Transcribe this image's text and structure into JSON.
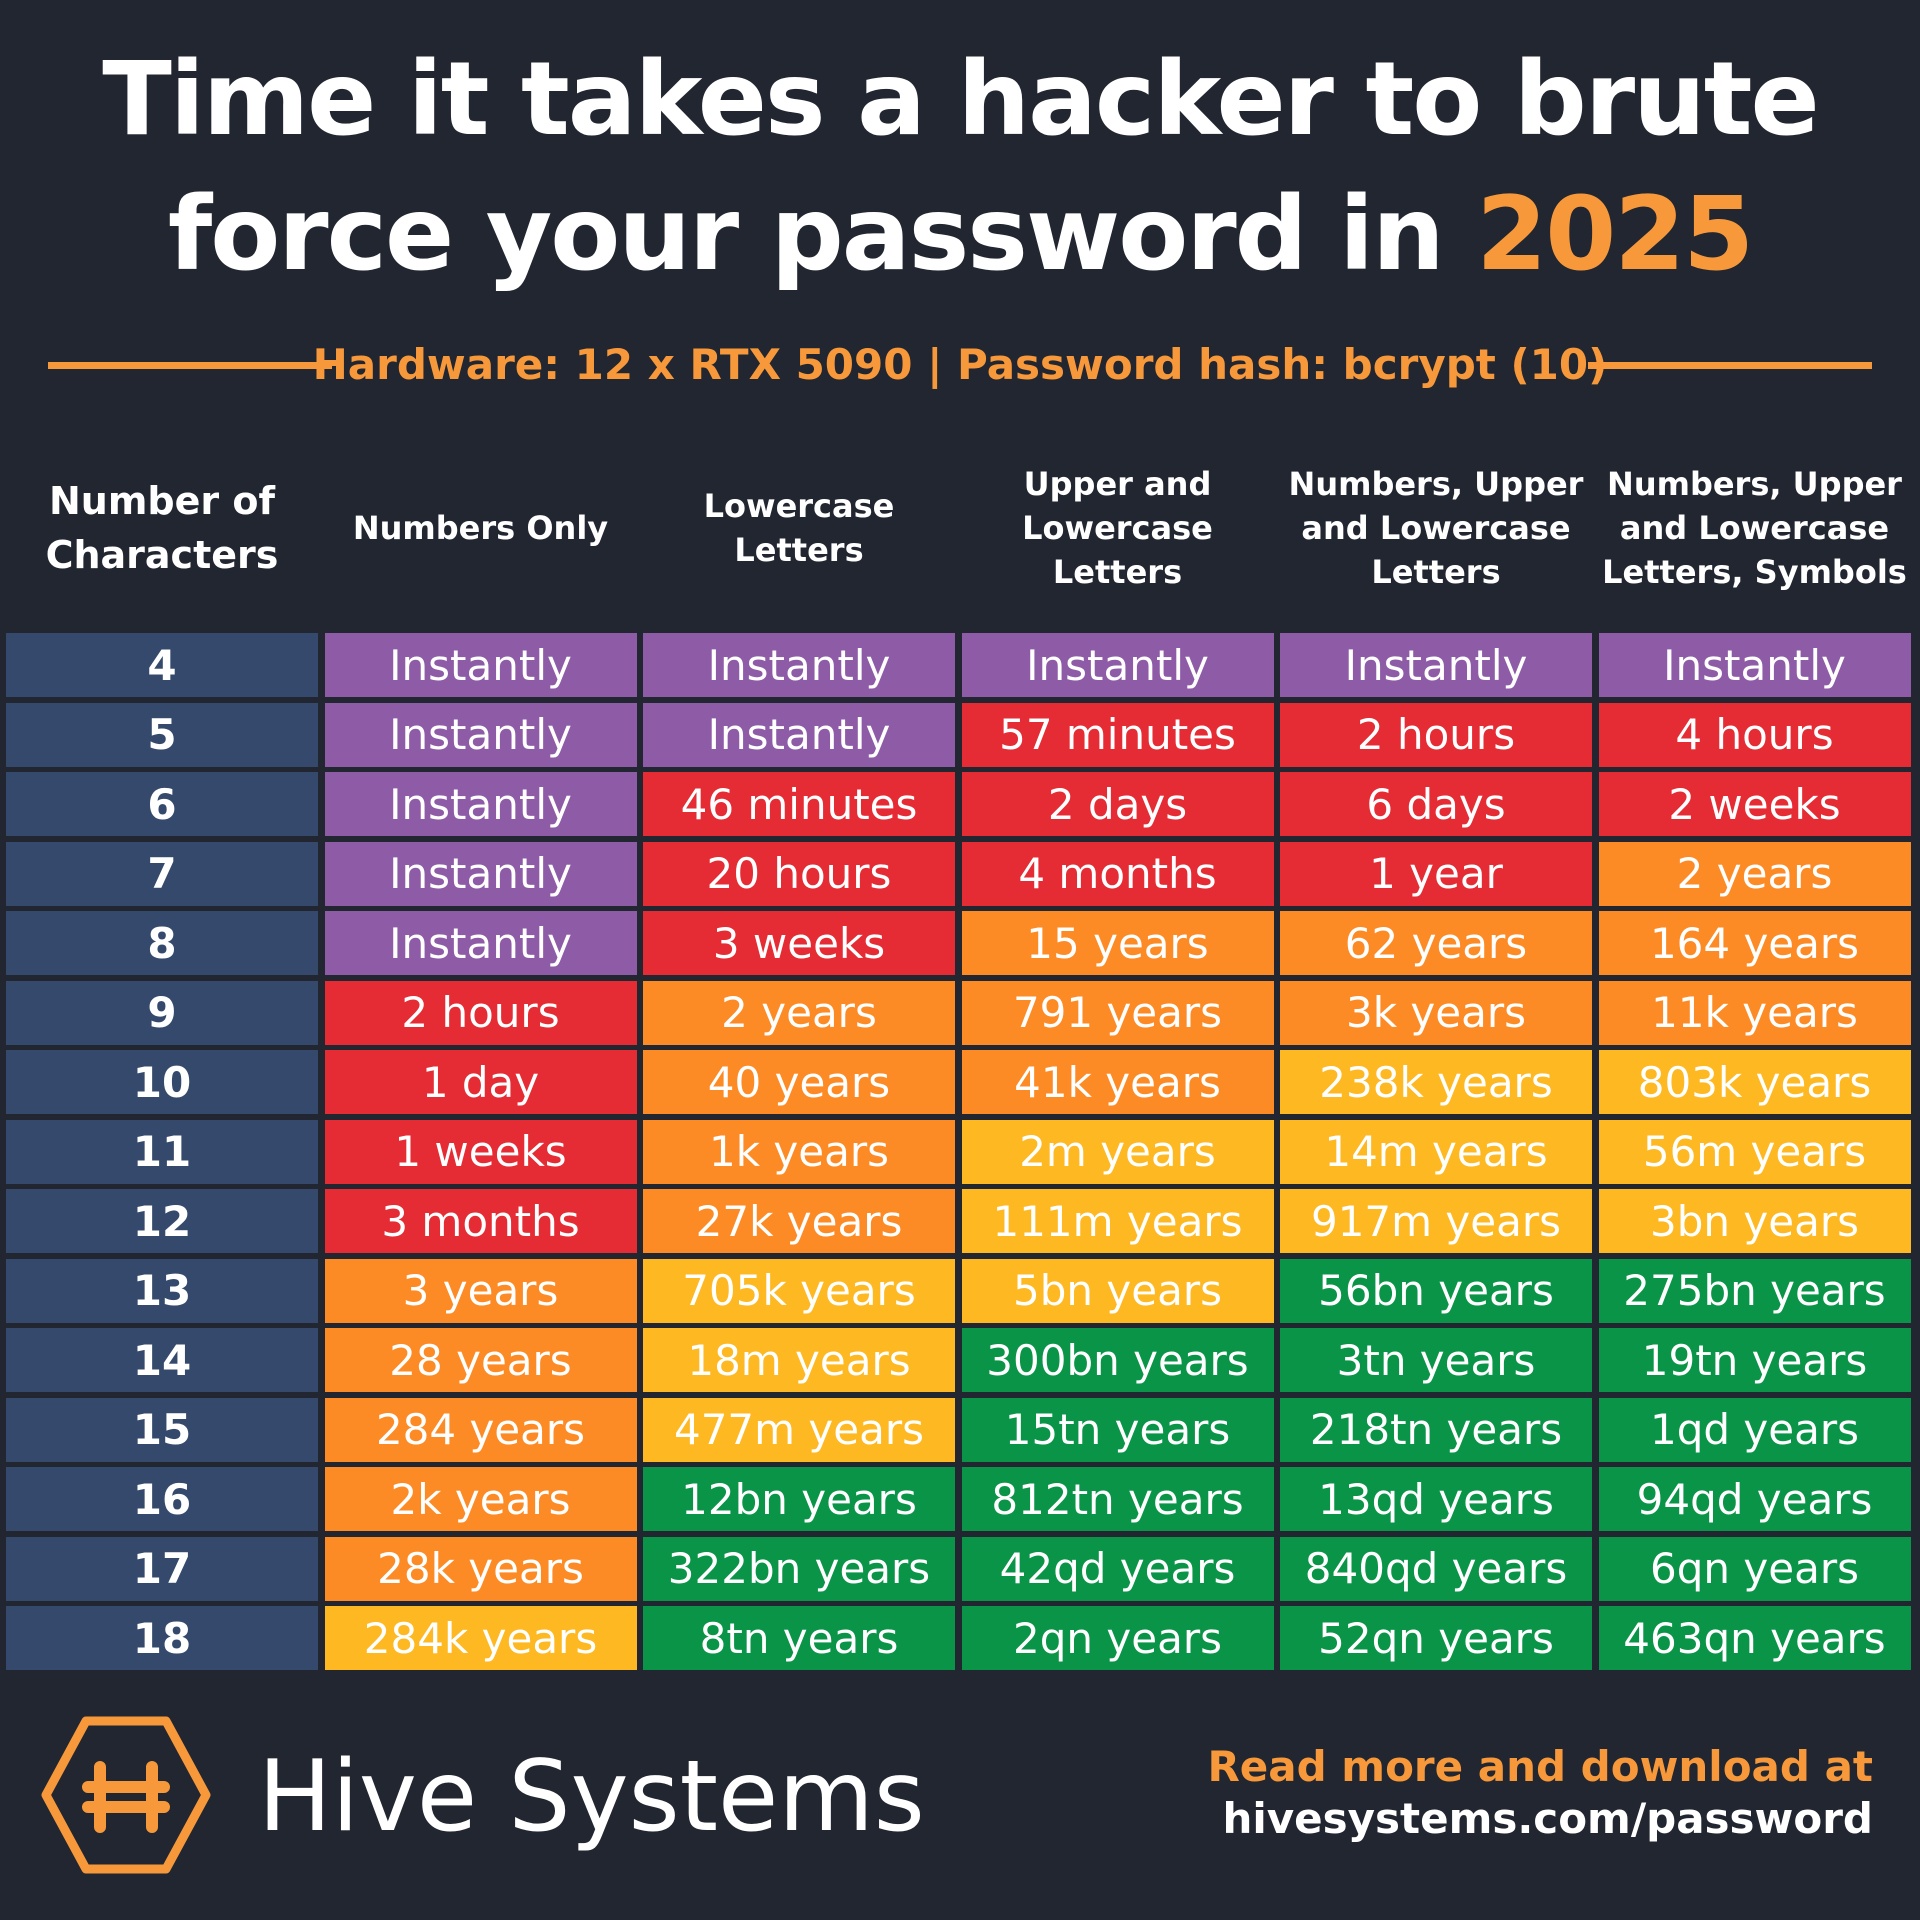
{
  "header": {
    "title_lines": [
      "Time it takes a hacker to brute",
      "force your password in"
    ],
    "title_highlight": "2025",
    "subtitle": "Hardware: 12 x RTX 5090 | Password hash: bcrypt (10)"
  },
  "table": {
    "columns": [
      [
        "Number of",
        "Characters"
      ],
      [
        "Numbers Only"
      ],
      [
        "Lowercase",
        "Letters"
      ],
      [
        "Upper and",
        "Lowercase",
        "Letters"
      ],
      [
        "Numbers, Upper",
        "and Lowercase",
        "Letters"
      ],
      [
        "Numbers, Upper",
        "and Lowercase",
        "Letters, Symbols"
      ]
    ],
    "row_header_color": "#34496b",
    "rows": [
      [
        "4",
        "Instantly",
        "Instantly",
        "Instantly",
        "Instantly",
        "Instantly"
      ],
      [
        "5",
        "Instantly",
        "Instantly",
        "57 minutes",
        "2 hours",
        "4 hours"
      ],
      [
        "6",
        "Instantly",
        "46 minutes",
        "2 days",
        "6 days",
        "2 weeks"
      ],
      [
        "7",
        "Instantly",
        "20 hours",
        "4 months",
        "1 year",
        "2 years"
      ],
      [
        "8",
        "Instantly",
        "3 weeks",
        "15 years",
        "62 years",
        "164 years"
      ],
      [
        "9",
        "2 hours",
        "2 years",
        "791 years",
        "3k years",
        "11k years"
      ],
      [
        "10",
        "1 day",
        "40 years",
        "41k years",
        "238k years",
        "803k years"
      ],
      [
        "11",
        "1 weeks",
        "1k years",
        "2m years",
        "14m years",
        "56m years"
      ],
      [
        "12",
        "3 months",
        "27k years",
        "111m years",
        "917m years",
        "3bn years"
      ],
      [
        "13",
        "3 years",
        "705k years",
        "5bn years",
        "56bn years",
        "275bn years"
      ],
      [
        "14",
        "28 years",
        "18m years",
        "300bn years",
        "3tn years",
        "19tn years"
      ],
      [
        "15",
        "284 years",
        "477m years",
        "15tn years",
        "218tn years",
        "1qd years"
      ],
      [
        "16",
        "2k years",
        "12bn years",
        "812tn years",
        "13qd years",
        "94qd years"
      ],
      [
        "17",
        "28k years",
        "322bn years",
        "42qd years",
        "840qd years",
        "6qn years"
      ],
      [
        "18",
        "284k years",
        "8tn years",
        "2qn years",
        "52qn years",
        "463qn years"
      ]
    ],
    "cell_colors": [
      [
        "#8e5ba6",
        "#8e5ba6",
        "#8e5ba6",
        "#8e5ba6",
        "#8e5ba6"
      ],
      [
        "#8e5ba6",
        "#8e5ba6",
        "#e52b34",
        "#e52b34",
        "#e52b34"
      ],
      [
        "#8e5ba6",
        "#e52b34",
        "#e52b34",
        "#e52b34",
        "#e52b34"
      ],
      [
        "#8e5ba6",
        "#e52b34",
        "#e52b34",
        "#e52b34",
        "#fd8b25"
      ],
      [
        "#8e5ba6",
        "#e52b34",
        "#fd8b25",
        "#fd8b25",
        "#fd8b25"
      ],
      [
        "#e52b34",
        "#fd8b25",
        "#fd8b25",
        "#fd8b25",
        "#fd8b25"
      ],
      [
        "#e52b34",
        "#fd8b25",
        "#fd8b25",
        "#fdb822",
        "#fdb822"
      ],
      [
        "#e52b34",
        "#fd8b25",
        "#fdb822",
        "#fdb822",
        "#fdb822"
      ],
      [
        "#e52b34",
        "#fd8b25",
        "#fdb822",
        "#fdb822",
        "#fdb822"
      ],
      [
        "#fd8b25",
        "#fdb822",
        "#fdb822",
        "#0a9448",
        "#0a9448"
      ],
      [
        "#fd8b25",
        "#fdb822",
        "#0a9448",
        "#0a9448",
        "#0a9448"
      ],
      [
        "#fd8b25",
        "#fdb822",
        "#0a9448",
        "#0a9448",
        "#0a9448"
      ],
      [
        "#fd8b25",
        "#0a9448",
        "#0a9448",
        "#0a9448",
        "#0a9448"
      ],
      [
        "#fd8b25",
        "#0a9448",
        "#0a9448",
        "#0a9448",
        "#0a9448"
      ],
      [
        "#fdb822",
        "#0a9448",
        "#0a9448",
        "#0a9448",
        "#0a9448"
      ]
    ]
  },
  "footer": {
    "brand": "Hive Systems",
    "cta": "Read more and download at",
    "url": "hivesystems.com/password"
  }
}
